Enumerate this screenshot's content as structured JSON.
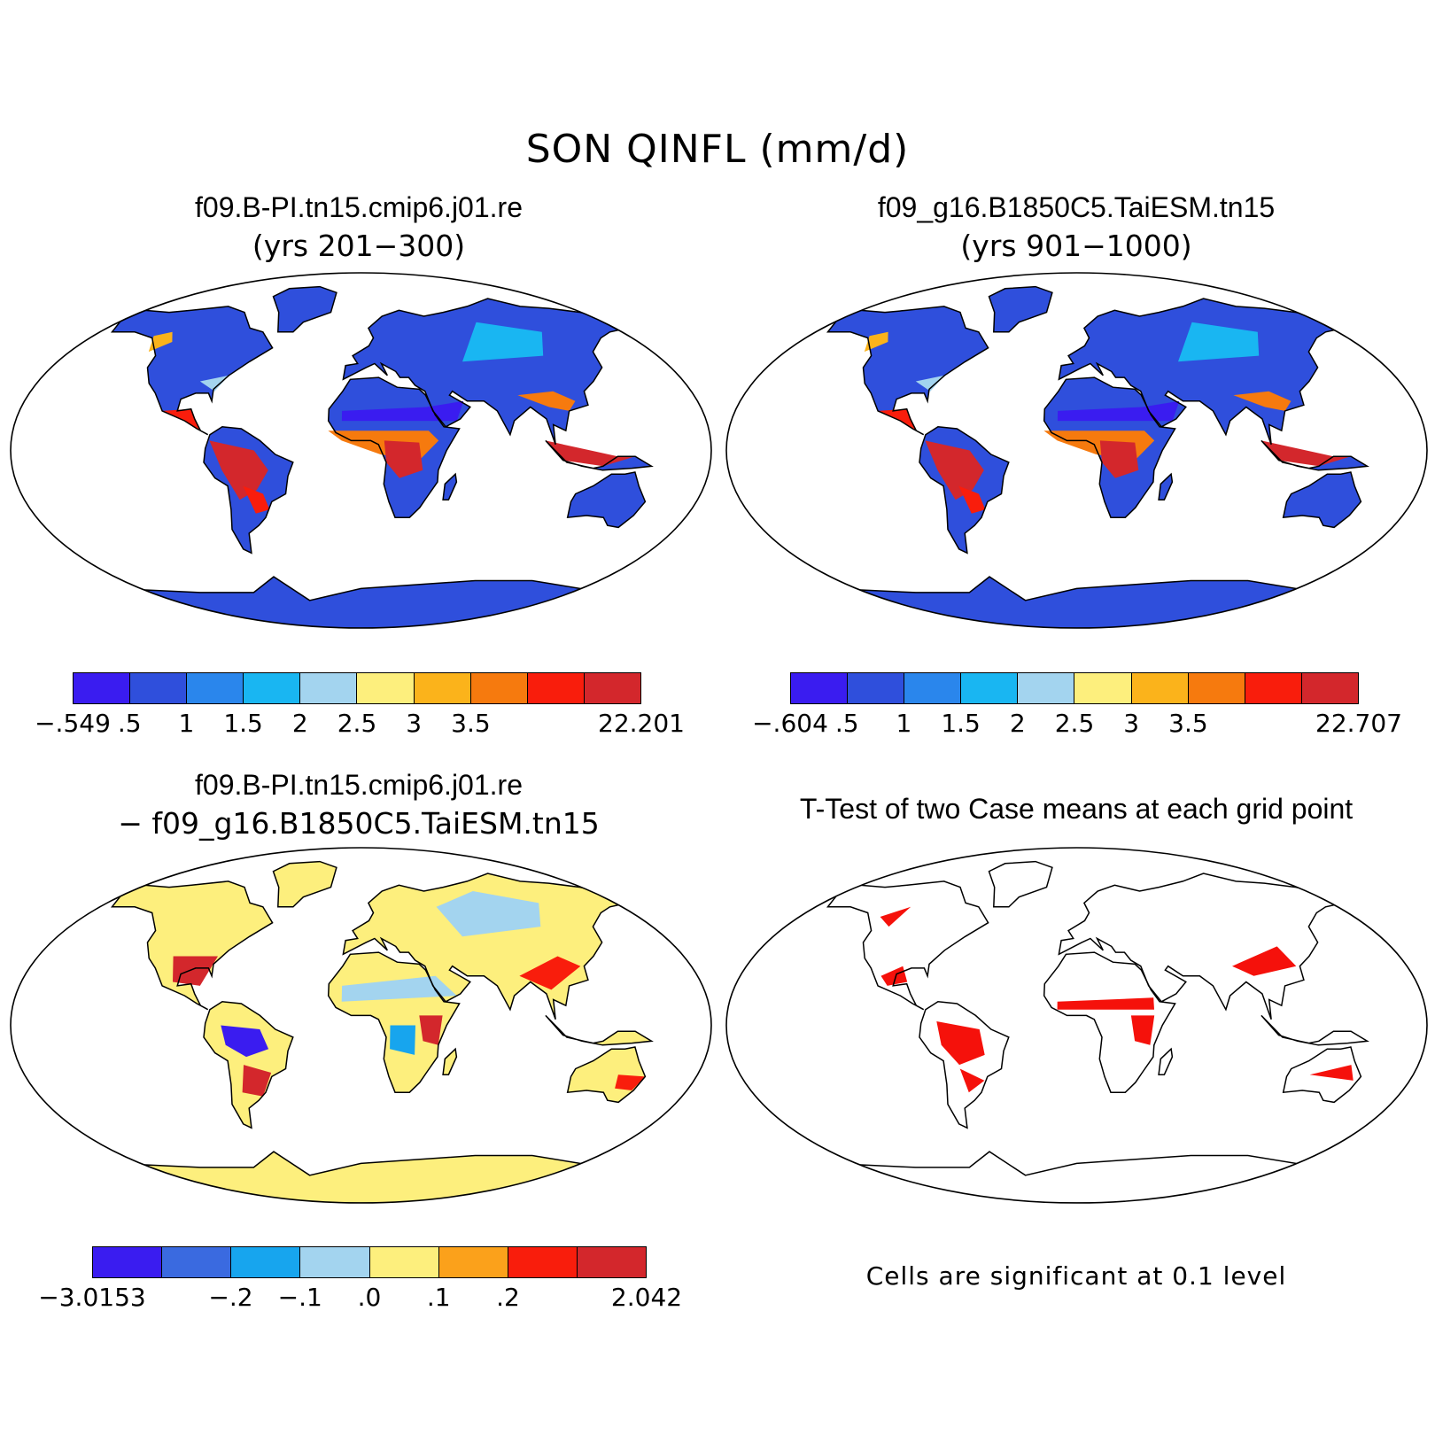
{
  "title": "SON QINFL (mm/d)",
  "panels": [
    {
      "title": "f09.B-PI.tn15.cmip6.j01.re",
      "subtitle": "(yrs 201−300)",
      "map_type": "absolute",
      "colorbar": {
        "colors": [
          "#3a1cf0",
          "#2f4fdc",
          "#2a86ec",
          "#19b6f2",
          "#a3d4ef",
          "#fdef7d",
          "#fbb31b",
          "#f67a0e",
          "#f91d0c",
          "#d3272c"
        ],
        "labels": [
          "−.549",
          ".5",
          "1",
          "1.5",
          "2",
          "2.5",
          "3",
          "3.5",
          "22.201"
        ]
      }
    },
    {
      "title": "f09_g16.B1850C5.TaiESM.tn15",
      "subtitle": "(yrs 901−1000)",
      "map_type": "absolute",
      "colorbar": {
        "colors": [
          "#3a1cf0",
          "#2f4fdc",
          "#2a86ec",
          "#19b6f2",
          "#a3d4ef",
          "#fdef7d",
          "#fbb31b",
          "#f67a0e",
          "#f91d0c",
          "#d3272c"
        ],
        "labels": [
          "−.604",
          ".5",
          "1",
          "1.5",
          "2",
          "2.5",
          "3",
          "3.5",
          "22.707"
        ]
      }
    },
    {
      "title": "f09.B-PI.tn15.cmip6.j01.re",
      "subtitle": "− f09_g16.B1850C5.TaiESM.tn15",
      "map_type": "difference",
      "colorbar": {
        "colors": [
          "#3a1cf0",
          "#3a6ae0",
          "#17a5ee",
          "#a3d4ef",
          "#fdef7d",
          "#fba11b",
          "#f91d0c",
          "#d3272c"
        ],
        "labels": [
          "−3.0153",
          "−.2",
          "−.1",
          ".0",
          ".1",
          ".2",
          "2.042"
        ]
      }
    },
    {
      "title": "T-Test of two Case means at each grid point",
      "map_type": "significance",
      "note": "Cells are significant at 0.1 level",
      "colors": {
        "significant": "#f5110b"
      }
    }
  ]
}
